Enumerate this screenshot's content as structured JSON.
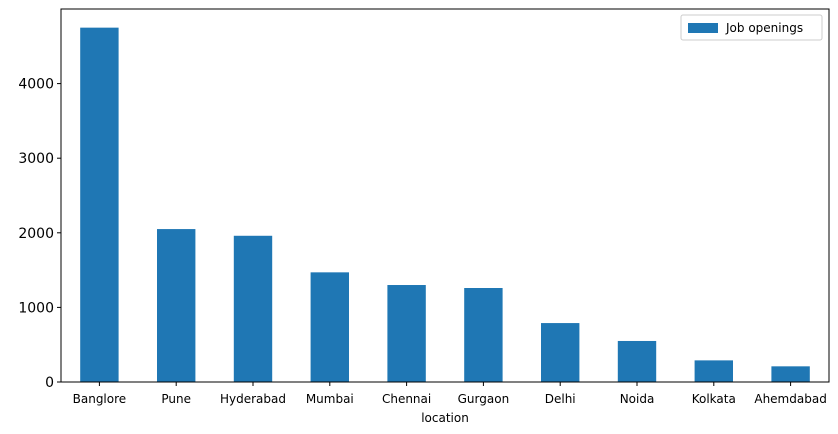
{
  "chart_data": {
    "type": "bar",
    "title": "",
    "xlabel": "location",
    "ylabel": "",
    "categories": [
      "Banglore",
      "Pune",
      "Hyderabad",
      "Mumbai",
      "Chennai",
      "Gurgaon",
      "Delhi",
      "Noida",
      "Kolkata",
      "Ahemdabad"
    ],
    "series": [
      {
        "name": "Job openings",
        "values": [
          4750,
          2050,
          1960,
          1470,
          1300,
          1260,
          790,
          550,
          290,
          210
        ],
        "color": "#1f77b4"
      }
    ],
    "yticks": [
      0,
      1000,
      2000,
      3000,
      4000
    ],
    "ylim": [
      0,
      5000
    ],
    "grid": false,
    "legend_position": "top-right"
  }
}
